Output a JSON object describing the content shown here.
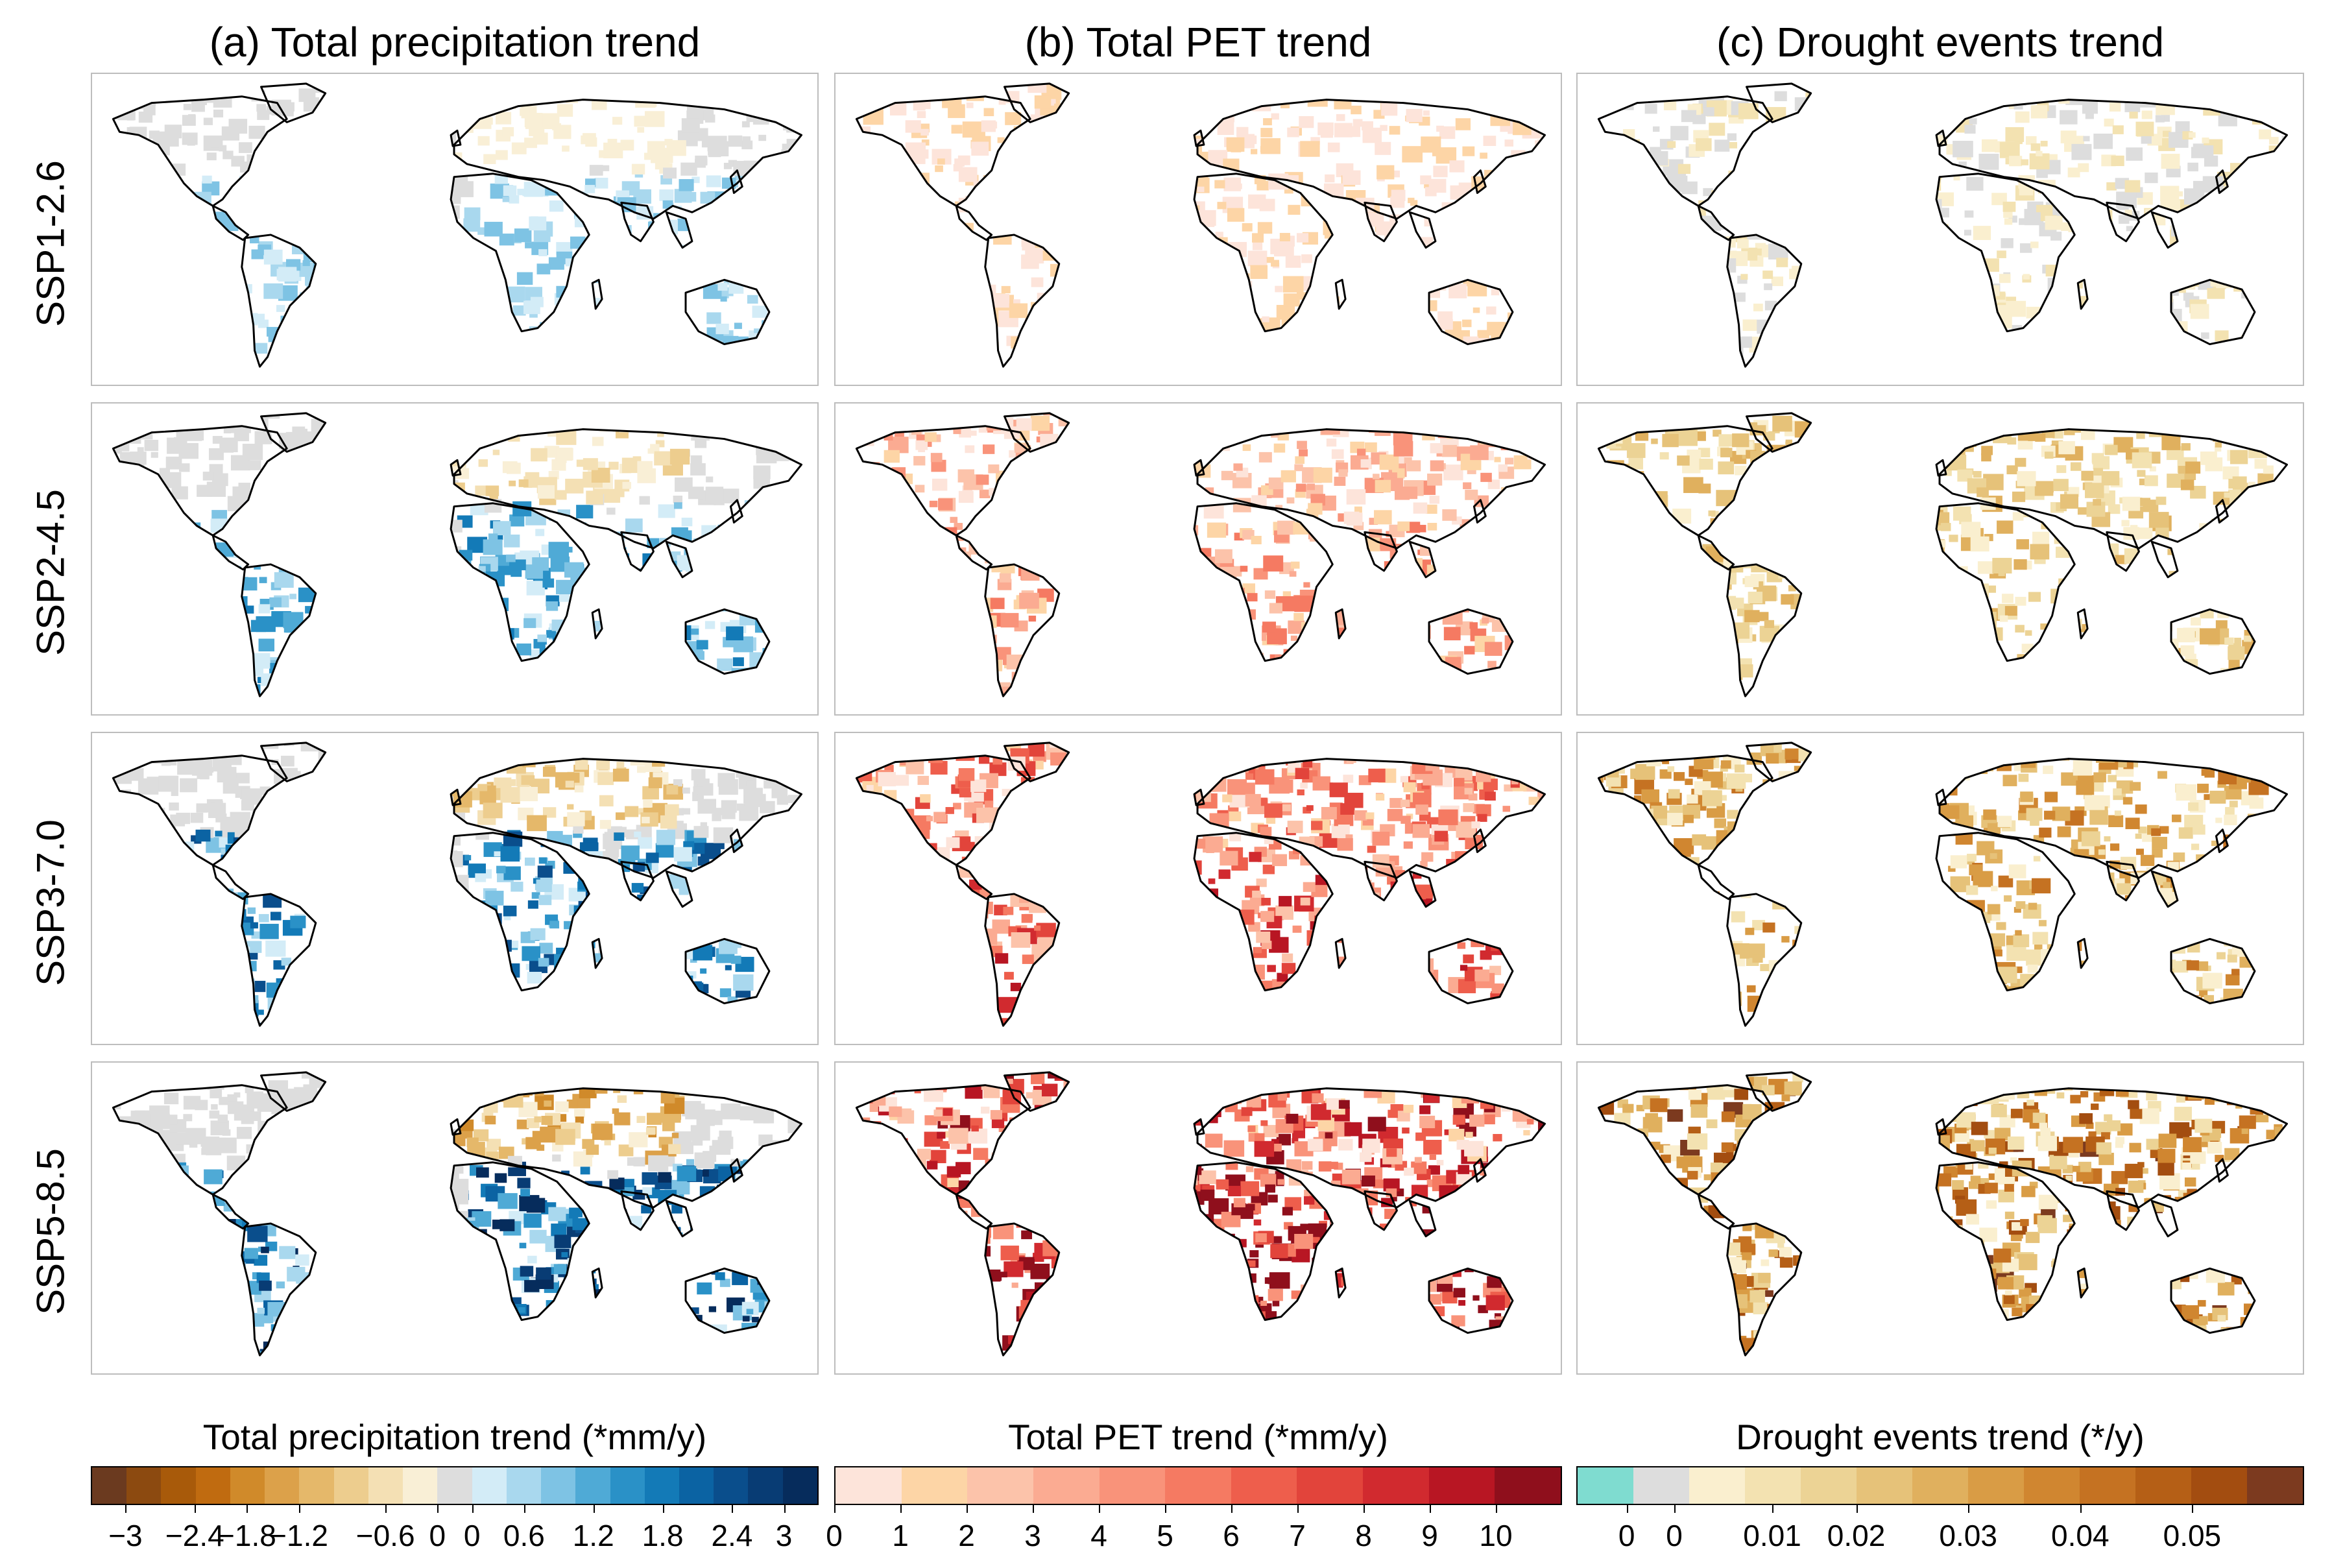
{
  "panels": {
    "columns": [
      "(a) Total precipitation trend",
      "(b) Total PET trend",
      "(c) Drought events trend"
    ],
    "rows": [
      "SSP1-2.6",
      "SSP2-4.5",
      "SSP3-7.0",
      "SSP5-8.5"
    ]
  },
  "chart_data": [
    {
      "type": "heatmap",
      "title": "(a) Total precipitation trend",
      "scenarios": [
        "SSP1-2.6",
        "SSP2-4.5",
        "SSP3-7.0",
        "SSP5-8.5"
      ],
      "colorbar": {
        "label": "Total precipitation trend (*mm/y)",
        "ticks": [
          "−3",
          "−2.4",
          "−1.8",
          "−1.2",
          "−0.6",
          "0",
          "0",
          "0.6",
          "1.2",
          "1.8",
          "2.4",
          "3"
        ],
        "range": [
          -3,
          3
        ],
        "colors": [
          "#6b3a1f",
          "#8c4a10",
          "#a85a0a",
          "#c06b10",
          "#d08a2a",
          "#dca14a",
          "#e5b86a",
          "#edcd8e",
          "#f4e0b4",
          "#f9efd6",
          "#dddddd",
          "#d3ecf7",
          "#a9d8ee",
          "#7ec3e4",
          "#4faad6",
          "#2a91c7",
          "#137ab7",
          "#0b63a3",
          "#0a4e8c",
          "#083c74",
          "#062c5c"
        ]
      }
    },
    {
      "type": "heatmap",
      "title": "(b) Total PET trend",
      "scenarios": [
        "SSP1-2.6",
        "SSP2-4.5",
        "SSP3-7.0",
        "SSP5-8.5"
      ],
      "colorbar": {
        "label": "Total PET trend (*mm/y)",
        "ticks": [
          "0",
          "1",
          "2",
          "3",
          "4",
          "5",
          "6",
          "7",
          "8",
          "9",
          "10"
        ],
        "range": [
          0,
          11
        ],
        "colors": [
          "#fde4da",
          "#fdd5a6",
          "#fcc3aa",
          "#fbab92",
          "#f9937a",
          "#f57a62",
          "#ee5e4c",
          "#e2443b",
          "#d12a2f",
          "#b81623",
          "#8f0f1c"
        ]
      }
    },
    {
      "type": "heatmap",
      "title": "(c) Drought events trend",
      "scenarios": [
        "SSP1-2.6",
        "SSP2-4.5",
        "SSP3-7.0",
        "SSP5-8.5"
      ],
      "colorbar": {
        "label": "Drought events trend (*/y)",
        "ticks": [
          "0",
          "0",
          "0.01",
          "0.02",
          "0.03",
          "0.04",
          "0.05"
        ],
        "range": [
          -0.01,
          0.055
        ],
        "colors": [
          "#7fdcd0",
          "#dddddd",
          "#faefcf",
          "#f3e2b1",
          "#ecd395",
          "#e6c279",
          "#e0b05e",
          "#d99c45",
          "#d08630",
          "#c57222",
          "#b55f16",
          "#a34d10",
          "#7c3a1f"
        ]
      }
    }
  ]
}
